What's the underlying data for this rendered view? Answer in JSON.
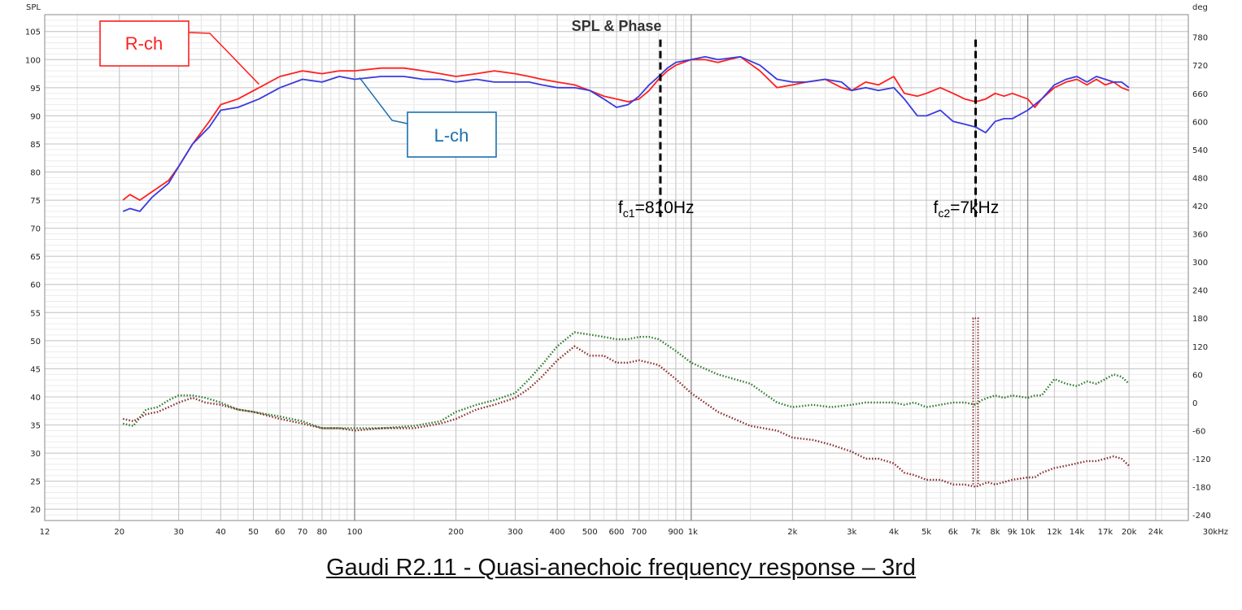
{
  "caption": "Gaudi R2.11 - Quasi-anechoic frequency response – 3rd",
  "chart_data": {
    "type": "line",
    "title": "SPL & Phase",
    "ylabel": "SPL",
    "y2label": "deg",
    "xscale": "log",
    "xlim": [
      12,
      30000
    ],
    "ylim": [
      18,
      108
    ],
    "y2lim": [
      -252,
      828
    ],
    "grid": true,
    "x_tick_labels": [
      {
        "f": 12,
        "label": "12"
      },
      {
        "f": 20,
        "label": "20"
      },
      {
        "f": 30,
        "label": "30"
      },
      {
        "f": 40,
        "label": "40"
      },
      {
        "f": 50,
        "label": "50"
      },
      {
        "f": 60,
        "label": "60"
      },
      {
        "f": 70,
        "label": "70"
      },
      {
        "f": 80,
        "label": "80"
      },
      {
        "f": 100,
        "label": "100"
      },
      {
        "f": 200,
        "label": "200"
      },
      {
        "f": 300,
        "label": "300"
      },
      {
        "f": 400,
        "label": "400"
      },
      {
        "f": 500,
        "label": "500"
      },
      {
        "f": 600,
        "label": "600"
      },
      {
        "f": 700,
        "label": "700"
      },
      {
        "f": 900,
        "label": "900"
      },
      {
        "f": 1000,
        "label": "1k"
      },
      {
        "f": 2000,
        "label": "2k"
      },
      {
        "f": 3000,
        "label": "3k"
      },
      {
        "f": 4000,
        "label": "4k"
      },
      {
        "f": 5000,
        "label": "5k"
      },
      {
        "f": 6000,
        "label": "6k"
      },
      {
        "f": 7000,
        "label": "7k"
      },
      {
        "f": 8000,
        "label": "8k"
      },
      {
        "f": 9000,
        "label": "9k"
      },
      {
        "f": 10000,
        "label": "10k"
      },
      {
        "f": 12000,
        "label": "12k"
      },
      {
        "f": 14000,
        "label": "14k"
      },
      {
        "f": 17000,
        "label": "17k"
      },
      {
        "f": 20000,
        "label": "20k"
      },
      {
        "f": 24000,
        "label": "24k"
      },
      {
        "f": 30000,
        "label": "30kHz"
      }
    ],
    "y_ticks": [
      20,
      25,
      30,
      35,
      40,
      45,
      50,
      55,
      60,
      65,
      70,
      75,
      80,
      85,
      90,
      95,
      100,
      105
    ],
    "y2_ticks": [
      -240,
      -180,
      -120,
      -60,
      0,
      60,
      120,
      180,
      240,
      300,
      360,
      420,
      480,
      540,
      600,
      660,
      720,
      780
    ],
    "series": [
      {
        "name": "R-ch",
        "kind": "spl",
        "color": "#ff2020",
        "x": [
          20.5,
          21.5,
          23,
          25,
          28,
          30,
          33,
          37,
          40,
          45,
          52,
          60,
          70,
          80,
          90,
          100,
          120,
          140,
          160,
          180,
          200,
          230,
          260,
          300,
          330,
          360,
          400,
          450,
          500,
          550,
          600,
          650,
          700,
          750,
          800,
          850,
          900,
          1000,
          1100,
          1200,
          1400,
          1600,
          1800,
          2000,
          2200,
          2500,
          2800,
          3000,
          3300,
          3600,
          4000,
          4300,
          4700,
          5000,
          5500,
          6000,
          6500,
          7000,
          7500,
          8000,
          8500,
          9000,
          10000,
          10500,
          11000,
          12000,
          13000,
          14000,
          15000,
          16000,
          17000,
          18000,
          19000,
          20000
        ],
        "y": [
          75,
          76,
          75,
          76.5,
          78.5,
          81,
          85,
          89,
          92,
          93,
          95,
          97,
          98,
          97.5,
          98,
          98,
          98.5,
          98.5,
          98,
          97.5,
          97,
          97.5,
          98,
          97.5,
          97,
          96.5,
          96,
          95.5,
          94.5,
          93.5,
          93,
          92.5,
          93,
          94.5,
          96.5,
          98,
          99,
          100,
          100,
          99.5,
          100.5,
          98,
          95,
          95.5,
          96,
          96.5,
          95,
          94.5,
          96,
          95.5,
          97,
          94,
          93.5,
          94,
          95,
          94,
          93,
          92.5,
          93,
          94,
          93.5,
          94,
          93,
          91.5,
          93,
          95,
          96,
          96.5,
          95.5,
          96.5,
          95.5,
          96,
          95,
          94.5
        ]
      },
      {
        "name": "L-ch",
        "kind": "spl",
        "color": "#3a3ae0",
        "x": [
          20.5,
          21.5,
          23,
          25,
          28,
          30,
          33,
          37,
          40,
          45,
          52,
          60,
          70,
          80,
          90,
          100,
          120,
          140,
          160,
          180,
          200,
          230,
          260,
          300,
          330,
          360,
          400,
          450,
          500,
          550,
          600,
          650,
          700,
          750,
          800,
          850,
          900,
          1000,
          1100,
          1200,
          1400,
          1600,
          1800,
          2000,
          2200,
          2500,
          2800,
          3000,
          3300,
          3600,
          4000,
          4300,
          4700,
          5000,
          5500,
          6000,
          6500,
          7000,
          7500,
          8000,
          8500,
          9000,
          10000,
          10500,
          11000,
          12000,
          13000,
          14000,
          15000,
          16000,
          17000,
          18000,
          19000,
          20000
        ],
        "y": [
          73,
          73.5,
          73,
          75.5,
          78,
          81,
          85,
          88,
          91,
          91.5,
          93,
          95,
          96.5,
          96,
          97,
          96.5,
          97,
          97,
          96.5,
          96.5,
          96,
          96.5,
          96,
          96,
          96,
          95.5,
          95,
          95,
          94.5,
          93,
          91.5,
          92,
          93.5,
          95.5,
          97,
          98.5,
          99.5,
          100,
          100.5,
          100,
          100.5,
          99,
          96.5,
          96,
          96,
          96.5,
          96,
          94.5,
          95,
          94.5,
          95,
          93,
          90,
          90,
          91,
          89,
          88.5,
          88,
          87,
          89,
          89.5,
          89.5,
          91,
          92,
          93,
          95.5,
          96.5,
          97,
          96,
          97,
          96.5,
          96,
          96,
          95
        ]
      },
      {
        "name": "",
        "kind": "phase",
        "color": "#2a7a2a",
        "x": [
          20.5,
          22,
          24,
          26,
          28,
          30,
          33,
          36,
          40,
          45,
          50,
          60,
          70,
          80,
          90,
          100,
          120,
          150,
          180,
          200,
          230,
          260,
          300,
          330,
          360,
          400,
          450,
          500,
          550,
          600,
          650,
          700,
          750,
          800,
          900,
          1000,
          1200,
          1500,
          1800,
          2000,
          2300,
          2600,
          3000,
          3300,
          3600,
          4000,
          4300,
          4600,
          5000,
          5500,
          6000,
          6500,
          7000,
          7300,
          7600,
          8000,
          8500,
          9000,
          10000,
          10500,
          11000,
          12000,
          13000,
          14000,
          15000,
          16000,
          17000,
          18000,
          19000,
          20000
        ],
        "y": [
          -45,
          -50,
          -15,
          -10,
          5,
          15,
          15,
          10,
          0,
          -15,
          -20,
          -30,
          -40,
          -55,
          -55,
          -55,
          -55,
          -50,
          -40,
          -20,
          -5,
          5,
          20,
          50,
          80,
          120,
          150,
          145,
          140,
          135,
          135,
          140,
          140,
          135,
          110,
          85,
          60,
          40,
          0,
          -10,
          -5,
          -10,
          -5,
          0,
          0,
          0,
          -5,
          0,
          -10,
          -5,
          0,
          0,
          -5,
          5,
          10,
          15,
          10,
          15,
          10,
          15,
          15,
          50,
          40,
          35,
          45,
          40,
          50,
          60,
          55,
          40
        ]
      },
      {
        "name": "",
        "kind": "phase",
        "color": "#8b2a2a",
        "x": [
          20.5,
          22,
          24,
          26,
          28,
          30,
          33,
          36,
          40,
          45,
          50,
          60,
          70,
          80,
          90,
          100,
          120,
          150,
          180,
          200,
          230,
          260,
          300,
          330,
          360,
          400,
          450,
          500,
          550,
          600,
          650,
          700,
          750,
          800,
          900,
          1000,
          1200,
          1500,
          1800,
          2000,
          2300,
          2600,
          3000,
          3300,
          3600,
          4000,
          4300,
          4600,
          5000,
          5500,
          6000,
          6500,
          7000,
          7300,
          7600,
          8000,
          8500,
          9000,
          10000,
          10500,
          11000,
          12000,
          13000,
          14000,
          15000,
          16000,
          17000,
          18000,
          19000,
          20000
        ],
        "y": [
          -35,
          -40,
          -25,
          -20,
          -10,
          0,
          10,
          0,
          -5,
          -15,
          -20,
          -35,
          -45,
          -55,
          -55,
          -60,
          -55,
          -55,
          -45,
          -35,
          -15,
          -5,
          10,
          30,
          55,
          90,
          120,
          100,
          100,
          85,
          85,
          90,
          85,
          80,
          50,
          20,
          -20,
          -50,
          -60,
          -75,
          -80,
          -90,
          -105,
          -120,
          -120,
          -130,
          -150,
          -155,
          -165,
          -165,
          -175,
          -175,
          -180,
          -175,
          -170,
          -175,
          -170,
          -165,
          -160,
          -160,
          -150,
          -140,
          -135,
          -130,
          -125,
          -125,
          -120,
          -115,
          -120,
          -135
        ]
      }
    ],
    "annotations": [
      {
        "type": "vline",
        "x": 810,
        "from": 18,
        "to": 97.5,
        "label_main": "f",
        "label_sub": "c1",
        "label_rest": "=810Hz"
      },
      {
        "type": "vline",
        "x": 7000,
        "from": 18,
        "to": 97.5,
        "label_main": "f",
        "label_sub": "c2",
        "label_rest": "=7kHz"
      },
      {
        "type": "box",
        "text": "R-ch",
        "color": "#ff2020",
        "pointer_x": 52
      },
      {
        "type": "box",
        "text": "L-ch",
        "color": "#1a70b0",
        "pointer_x": 100
      }
    ],
    "legend": "in-plot callouts"
  }
}
